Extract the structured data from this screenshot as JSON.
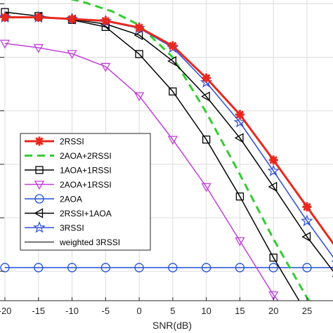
{
  "chart_data": {
    "type": "line",
    "xlabel": "SNR(dB)",
    "ylabel": "",
    "xscale": "linear",
    "yscale": "log",
    "xlim": [
      -20,
      29.5
    ],
    "ylim_log10": [
      -5.55,
      0.15
    ],
    "grid": true,
    "legend_position": "bottom-left",
    "x_ticks": [
      -20,
      -15,
      -10,
      -5,
      0,
      5,
      10,
      15,
      20,
      25
    ],
    "x_tick_labels": [
      "-20",
      "-15",
      "-10",
      "-5",
      "0",
      "5",
      "10",
      "15",
      "20",
      "25"
    ],
    "series": [
      {
        "name": "2RSSI",
        "color": "#e8281e",
        "line": "solid",
        "line_width": 3,
        "marker": "asterisk",
        "marker_x": [
          -20,
          -15,
          -10,
          -5,
          0,
          5,
          10,
          15,
          20,
          25
        ],
        "x": [
          -20,
          -15,
          -10,
          -5,
          0,
          5,
          10,
          15,
          20,
          25,
          29.5
        ],
        "y": [
          0.56,
          0.56,
          0.52,
          0.48,
          0.36,
          0.164,
          0.041,
          0.0085,
          0.0012,
          0.00016,
          2.6e-05
        ]
      },
      {
        "name": "2AOA+2RSSI",
        "color": "#33cc33",
        "line": "dashed",
        "line_width": 3,
        "marker": "none",
        "x": [
          -12,
          -8,
          -4,
          0,
          5,
          10,
          15,
          20,
          25,
          27.5,
          29.5
        ],
        "y": [
          1.4,
          1.05,
          0.72,
          0.4,
          0.1,
          0.0093,
          0.00065,
          4e-05,
          3.2e-06,
          1.2e-06,
          9e-07
        ]
      },
      {
        "name": "1AOA+1RSSI",
        "color": "#000000",
        "line": "solid",
        "line_width": 1.5,
        "marker": "square",
        "x": [
          -20,
          -15,
          -10,
          -5,
          0,
          5,
          10,
          15,
          20,
          25
        ],
        "y": [
          0.7,
          0.59,
          0.5,
          0.37,
          0.115,
          0.023,
          0.0029,
          0.00025,
          1.8e-05,
          1.6e-06
        ]
      },
      {
        "name": "2AOA+1RSSI",
        "color": "#c040d8",
        "line": "solid",
        "line_width": 1.5,
        "marker": "triangle-down",
        "x": [
          -20,
          -15,
          -10,
          -5,
          0,
          5,
          10,
          15,
          20,
          24
        ],
        "y": [
          0.182,
          0.151,
          0.117,
          0.067,
          0.019,
          0.0029,
          0.00038,
          3.7e-05,
          3.6e-06,
          9e-07
        ]
      },
      {
        "name": "2AOA",
        "color": "#2050d8",
        "line": "solid",
        "line_width": 1.5,
        "marker": "circle",
        "x": [
          -20,
          -15,
          -10,
          -5,
          0,
          5,
          10,
          15,
          20,
          25,
          29.5
        ],
        "y": [
          1.17e-05,
          1.17e-05,
          1.17e-05,
          1.17e-05,
          1.17e-05,
          1.17e-05,
          1.17e-05,
          1.17e-05,
          1.17e-05,
          1.17e-05,
          1.17e-05
        ]
      },
      {
        "name": "2RSSI+1AOA",
        "color": "#000000",
        "line": "solid",
        "line_width": 1.5,
        "marker": "triangle-left",
        "x": [
          -20,
          -15,
          -10,
          -5,
          0,
          5,
          10,
          15,
          20,
          25,
          29.5
        ],
        "y": [
          0.57,
          0.56,
          0.51,
          0.42,
          0.26,
          0.085,
          0.0185,
          0.0031,
          0.00038,
          4.4e-05,
          8e-06
        ]
      },
      {
        "name": "3RSSI",
        "color": "#2f4fd6",
        "line": "solid",
        "line_width": 1.5,
        "marker": "pentagram",
        "x": [
          -20,
          -15,
          -10,
          -5,
          0,
          5,
          10,
          15,
          20,
          25,
          29.5
        ],
        "y": [
          0.56,
          0.56,
          0.52,
          0.47,
          0.35,
          0.152,
          0.034,
          0.0061,
          0.00075,
          8.7e-05,
          1.45e-05
        ]
      },
      {
        "name": "weighted 3RSSI",
        "color": "#000000",
        "line": "solid",
        "line_width": 1,
        "marker": "none",
        "x": [
          -20,
          -15,
          -10,
          -5,
          0,
          5,
          10,
          15,
          20,
          25,
          29.5
        ],
        "y": [
          0.56,
          0.56,
          0.52,
          0.47,
          0.35,
          0.152,
          0.034,
          0.0061,
          0.00075,
          8.7e-05,
          1.45e-05
        ]
      }
    ]
  }
}
